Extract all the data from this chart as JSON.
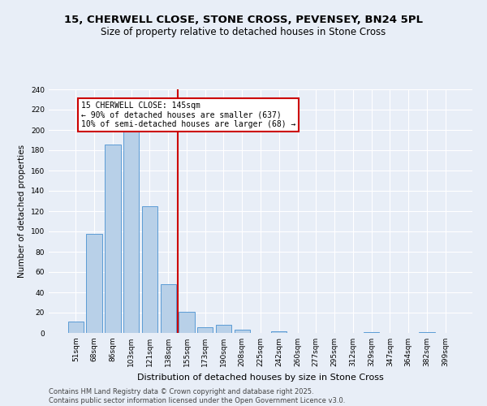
{
  "title": "15, CHERWELL CLOSE, STONE CROSS, PEVENSEY, BN24 5PL",
  "subtitle": "Size of property relative to detached houses in Stone Cross",
  "xlabel": "Distribution of detached houses by size in Stone Cross",
  "ylabel": "Number of detached properties",
  "bar_labels": [
    "51sqm",
    "68sqm",
    "86sqm",
    "103sqm",
    "121sqm",
    "138sqm",
    "155sqm",
    "173sqm",
    "190sqm",
    "208sqm",
    "225sqm",
    "242sqm",
    "260sqm",
    "277sqm",
    "295sqm",
    "312sqm",
    "329sqm",
    "347sqm",
    "364sqm",
    "382sqm",
    "399sqm"
  ],
  "bar_values": [
    11,
    98,
    186,
    201,
    125,
    48,
    21,
    6,
    8,
    3,
    0,
    2,
    0,
    0,
    0,
    0,
    1,
    0,
    0,
    1,
    0
  ],
  "bar_color": "#b8d0e8",
  "bar_edge_color": "#5b9bd5",
  "vline_x": 5.5,
  "vline_label": "15 CHERWELL CLOSE: 145sqm",
  "annotation_line1": "← 90% of detached houses are smaller (637)",
  "annotation_line2": "10% of semi-detached houses are larger (68) →",
  "annotation_box_color": "#ffffff",
  "annotation_box_edge_color": "#cc0000",
  "vline_color": "#cc0000",
  "ylim": [
    0,
    240
  ],
  "yticks": [
    0,
    20,
    40,
    60,
    80,
    100,
    120,
    140,
    160,
    180,
    200,
    220,
    240
  ],
  "footer_line1": "Contains HM Land Registry data © Crown copyright and database right 2025.",
  "footer_line2": "Contains public sector information licensed under the Open Government Licence v3.0.",
  "bg_color": "#e8eef7",
  "grid_color": "#ffffff",
  "title_fontsize": 9.5,
  "subtitle_fontsize": 8.5,
  "ylabel_fontsize": 7.5,
  "xlabel_fontsize": 8,
  "tick_fontsize": 6.5,
  "annot_fontsize": 7,
  "footer_fontsize": 6
}
